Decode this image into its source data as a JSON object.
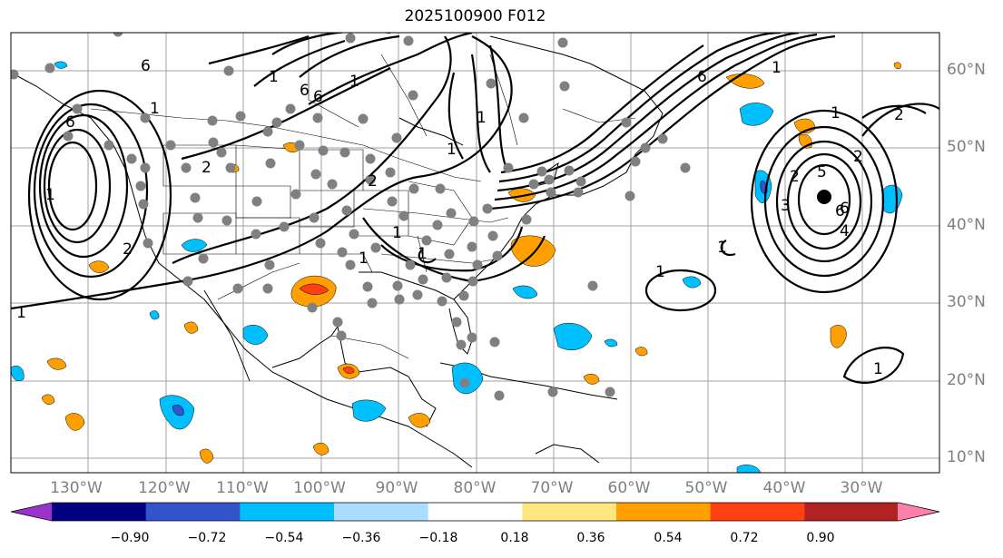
{
  "title": "2025100900 F012",
  "map": {
    "longitude_labels": [
      "130°W",
      "120°W",
      "110°W",
      "100°W",
      "90°W",
      "80°W",
      "70°W",
      "60°W",
      "50°W",
      "40°W",
      "30°W"
    ],
    "latitude_labels": [
      "60°N",
      "50°N",
      "40°N",
      "30°N",
      "20°N",
      "10°N"
    ],
    "contour_labels": [
      "6",
      "1",
      "1",
      "6",
      "2",
      "2",
      "1",
      "1",
      "6",
      "6",
      "1",
      "2",
      "1",
      "6",
      "1",
      "1",
      "2",
      "1",
      "6",
      "1",
      "1",
      "1",
      "2",
      "2",
      "5",
      "6",
      "4",
      "3",
      "1",
      "1",
      "1"
    ],
    "high_center_marker": "filled-black-dot",
    "station_marker_color": "#808080"
  },
  "colorbar": {
    "colors": [
      "#9933cc",
      "#000080",
      "#3355cc",
      "#00bfff",
      "#aaddff",
      "#ffffff",
      "#ffe680",
      "#ffa000",
      "#ff4010",
      "#b22222",
      "#ff80a8"
    ],
    "tick_labels": [
      "−0.90",
      "−0.72",
      "−0.54",
      "−0.36",
      "−0.18",
      "0.18",
      "0.36",
      "0.54",
      "0.72",
      "0.90"
    ]
  }
}
